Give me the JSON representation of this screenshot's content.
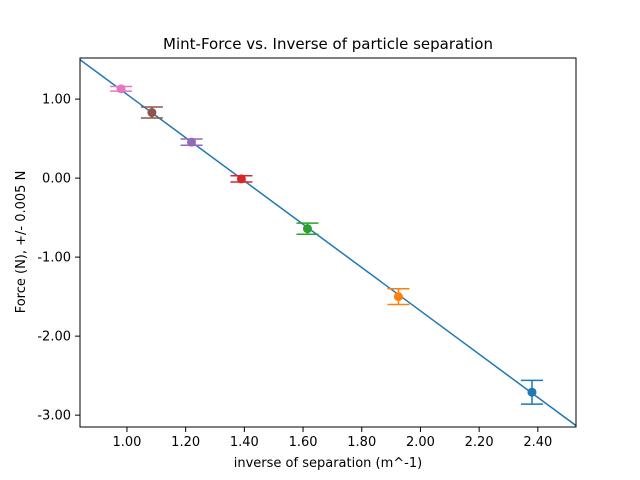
{
  "chart_data": {
    "type": "scatter",
    "title": "Mint-Force vs. Inverse of particle separation",
    "xlabel": "inverse of separation (m^-1)",
    "ylabel": "Force (N), +/- 0.005 N",
    "xlim": [
      0.84,
      2.53
    ],
    "ylim": [
      -3.15,
      1.52
    ],
    "xticks": [
      "1.00",
      "1.20",
      "1.40",
      "1.60",
      "1.80",
      "2.00",
      "2.20",
      "2.40"
    ],
    "yticks": [
      "1.00",
      "0.00",
      "-1.00",
      "-2.00",
      "-3.00"
    ],
    "grid": false,
    "points": [
      {
        "x": 2.38,
        "y": -2.71,
        "err": 0.15,
        "color": "#1f77b4"
      },
      {
        "x": 1.925,
        "y": -1.5,
        "err": 0.1,
        "color": "#ff7f0e"
      },
      {
        "x": 1.615,
        "y": -0.64,
        "err": 0.07,
        "color": "#2ca02c"
      },
      {
        "x": 1.39,
        "y": -0.01,
        "err": 0.04,
        "color": "#d62728"
      },
      {
        "x": 1.22,
        "y": 0.455,
        "err": 0.04,
        "color": "#9467bd"
      },
      {
        "x": 1.085,
        "y": 0.83,
        "err": 0.07,
        "color": "#8c564b"
      },
      {
        "x": 0.98,
        "y": 1.13,
        "err": 0.03,
        "color": "#e377c2"
      }
    ],
    "fit_line": {
      "slope": -2.74,
      "intercept": 3.8,
      "color": "#1f77b4"
    }
  }
}
